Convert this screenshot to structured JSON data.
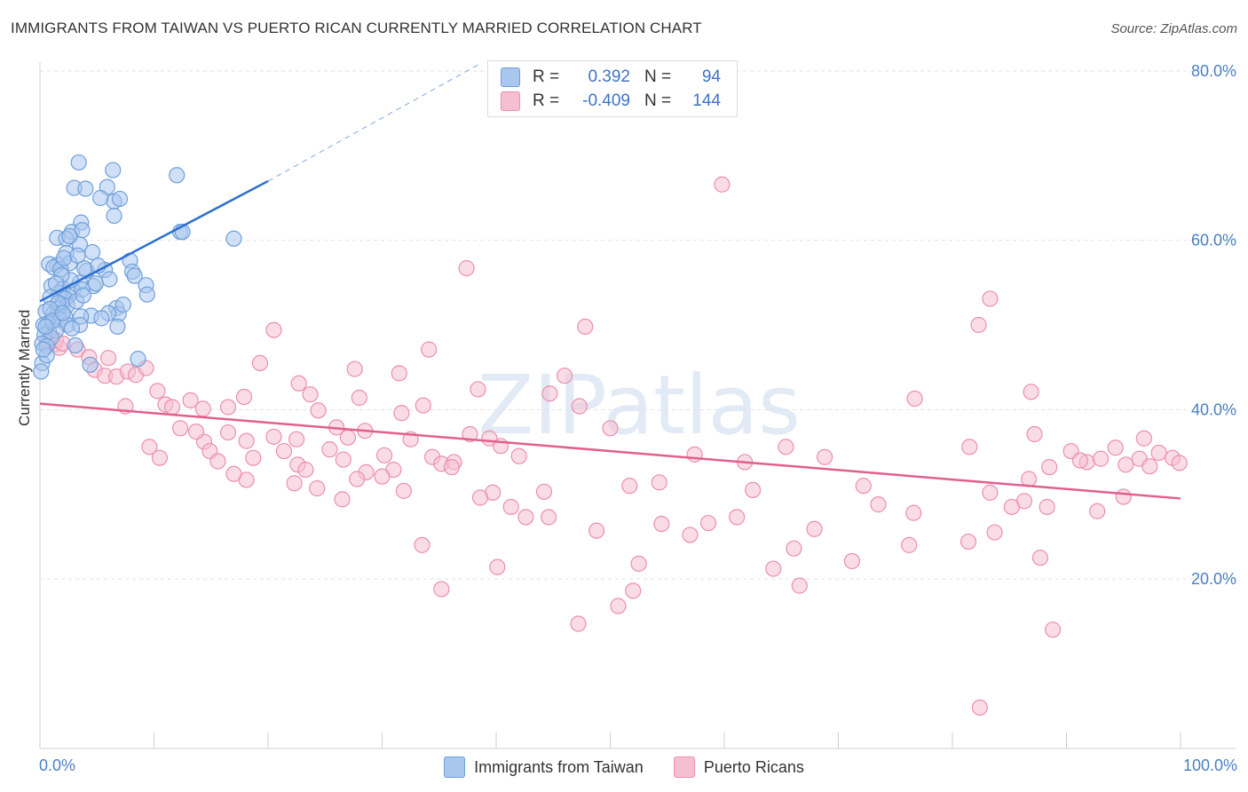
{
  "title": "IMMIGRANTS FROM TAIWAN VS PUERTO RICAN CURRENTLY MARRIED CORRELATION CHART",
  "source": "Source: ZipAtlas.com",
  "watermark": "ZIPatlas",
  "colors": {
    "blue_fill": "#a9c7ee",
    "blue_stroke": "#6f9fda",
    "blue_line": "#2a6fd0",
    "pink_fill": "#f6bfd1",
    "pink_stroke": "#ec8fae",
    "pink_line": "#e0608e",
    "axis_text": "#4a7fc4",
    "grid": "#e3e3e3"
  },
  "stats": {
    "rows": [
      {
        "r_label": "R =",
        "r_value": "0.392",
        "n_label": "N =",
        "n_value": "94",
        "color": "#a9c7ee"
      },
      {
        "r_label": "R =",
        "r_value": "-0.409",
        "n_label": "N =",
        "n_value": "144",
        "color": "#f6bfd1"
      }
    ]
  },
  "chart_data": {
    "type": "scatter",
    "title": "IMMIGRANTS FROM TAIWAN VS PUERTO RICAN CURRENTLY MARRIED CORRELATION CHART",
    "xlabel": "",
    "ylabel": "Currently Married",
    "xlim": [
      0,
      100
    ],
    "ylim": [
      0,
      85
    ],
    "x_tick_labels": [
      "0.0%",
      "100.0%"
    ],
    "y_ticks": [
      20,
      40,
      60,
      80
    ],
    "y_tick_labels": [
      "20.0%",
      "40.0%",
      "60.0%",
      "80.0%"
    ],
    "grid": true,
    "legend_position": "bottom",
    "series": [
      {
        "name": "Immigrants from Taiwan",
        "color": "#a9c7ee",
        "trend": {
          "x": [
            0,
            20
          ],
          "y": [
            52.8,
            67
          ],
          "dashed_to": {
            "x": 38.5,
            "y": 80.8
          }
        },
        "points": [
          [
            3.4,
            69.2
          ],
          [
            6.4,
            68.3
          ],
          [
            3.0,
            66.2
          ],
          [
            4.0,
            66.1
          ],
          [
            5.9,
            66.3
          ],
          [
            6.5,
            64.6
          ],
          [
            7.0,
            64.9
          ],
          [
            12.0,
            67.7
          ],
          [
            5.3,
            65.0
          ],
          [
            6.5,
            62.9
          ],
          [
            3.6,
            62.1
          ],
          [
            2.8,
            61.0
          ],
          [
            3.7,
            61.2
          ],
          [
            12.3,
            61.0
          ],
          [
            12.5,
            61.0
          ],
          [
            17.0,
            60.2
          ],
          [
            1.5,
            60.3
          ],
          [
            2.3,
            60.2
          ],
          [
            3.5,
            59.5
          ],
          [
            2.3,
            58.5
          ],
          [
            4.6,
            58.6
          ],
          [
            1.5,
            57.1
          ],
          [
            2.6,
            57.3
          ],
          [
            0.8,
            57.2
          ],
          [
            1.2,
            56.8
          ],
          [
            1.8,
            56.6
          ],
          [
            7.9,
            57.6
          ],
          [
            5.7,
            56.5
          ],
          [
            4.1,
            56.4
          ],
          [
            8.1,
            56.3
          ],
          [
            8.3,
            55.8
          ],
          [
            9.3,
            54.7
          ],
          [
            3.5,
            55.0
          ],
          [
            1.0,
            54.6
          ],
          [
            2.0,
            54.3
          ],
          [
            4.7,
            54.6
          ],
          [
            2.9,
            54.1
          ],
          [
            3.7,
            54.2
          ],
          [
            2.5,
            53.4
          ],
          [
            1.7,
            53.8
          ],
          [
            0.9,
            53.3
          ],
          [
            2.2,
            53.1
          ],
          [
            9.4,
            53.6
          ],
          [
            1.9,
            52.4
          ],
          [
            2.4,
            52.3
          ],
          [
            1.6,
            51.9
          ],
          [
            6.7,
            52.0
          ],
          [
            1.5,
            51.3
          ],
          [
            0.5,
            51.6
          ],
          [
            1.2,
            51.4
          ],
          [
            6.9,
            51.3
          ],
          [
            6.0,
            51.4
          ],
          [
            4.5,
            51.1
          ],
          [
            2.2,
            51.0
          ],
          [
            3.6,
            51.0
          ],
          [
            1.8,
            50.6
          ],
          [
            0.7,
            50.2
          ],
          [
            2.4,
            50.0
          ],
          [
            3.5,
            50.0
          ],
          [
            0.3,
            50.0
          ],
          [
            6.8,
            49.8
          ],
          [
            0.8,
            49.2
          ],
          [
            0.4,
            48.8
          ],
          [
            1.4,
            49.3
          ],
          [
            1.0,
            48.5
          ],
          [
            0.2,
            47.8
          ],
          [
            3.1,
            47.6
          ],
          [
            0.6,
            47.5
          ],
          [
            8.6,
            46.0
          ],
          [
            4.4,
            45.3
          ],
          [
            0.2,
            45.5
          ],
          [
            0.1,
            44.5
          ],
          [
            0.6,
            46.4
          ],
          [
            1.6,
            52.6
          ],
          [
            3.2,
            52.8
          ],
          [
            2.7,
            55.3
          ],
          [
            1.9,
            55.9
          ],
          [
            3.9,
            56.7
          ],
          [
            2.1,
            57.9
          ],
          [
            5.1,
            57.0
          ],
          [
            0.9,
            51.9
          ],
          [
            1.1,
            50.5
          ],
          [
            2.8,
            49.6
          ],
          [
            0.3,
            47.1
          ],
          [
            4.9,
            54.9
          ],
          [
            3.3,
            58.2
          ],
          [
            6.1,
            55.4
          ],
          [
            2.6,
            60.5
          ],
          [
            7.3,
            52.4
          ],
          [
            1.4,
            54.9
          ],
          [
            0.5,
            49.8
          ],
          [
            2.0,
            51.4
          ],
          [
            3.8,
            53.5
          ],
          [
            5.4,
            50.8
          ]
        ]
      },
      {
        "name": "Puerto Ricans",
        "color": "#f6bfd1",
        "trend": {
          "x": [
            0,
            100
          ],
          "y": [
            40.7,
            29.5
          ]
        },
        "points": [
          [
            59.8,
            66.6
          ],
          [
            37.4,
            56.7
          ],
          [
            83.3,
            53.1
          ],
          [
            47.8,
            49.8
          ],
          [
            82.3,
            50.0
          ],
          [
            20.5,
            49.4
          ],
          [
            34.1,
            47.1
          ],
          [
            0.6,
            47.9
          ],
          [
            1.3,
            47.7
          ],
          [
            1.7,
            47.3
          ],
          [
            1.4,
            48.2
          ],
          [
            2.0,
            47.8
          ],
          [
            3.3,
            47.1
          ],
          [
            4.3,
            46.2
          ],
          [
            4.8,
            44.7
          ],
          [
            5.7,
            44.0
          ],
          [
            6.0,
            46.1
          ],
          [
            6.7,
            43.9
          ],
          [
            7.7,
            44.5
          ],
          [
            8.4,
            44.1
          ],
          [
            9.3,
            44.9
          ],
          [
            19.3,
            45.5
          ],
          [
            27.6,
            44.8
          ],
          [
            31.5,
            44.3
          ],
          [
            46.0,
            44.0
          ],
          [
            10.3,
            42.2
          ],
          [
            22.7,
            43.1
          ],
          [
            38.4,
            42.4
          ],
          [
            86.9,
            42.1
          ],
          [
            11.0,
            40.6
          ],
          [
            11.6,
            40.3
          ],
          [
            13.2,
            41.1
          ],
          [
            14.3,
            40.1
          ],
          [
            16.5,
            40.3
          ],
          [
            17.9,
            41.5
          ],
          [
            23.7,
            41.8
          ],
          [
            28.0,
            41.4
          ],
          [
            33.6,
            40.5
          ],
          [
            44.7,
            41.9
          ],
          [
            47.3,
            40.4
          ],
          [
            76.7,
            41.3
          ],
          [
            7.5,
            40.4
          ],
          [
            24.4,
            39.9
          ],
          [
            31.7,
            39.6
          ],
          [
            37.7,
            37.1
          ],
          [
            28.5,
            37.5
          ],
          [
            26.0,
            37.9
          ],
          [
            22.5,
            36.5
          ],
          [
            20.5,
            36.8
          ],
          [
            14.4,
            36.2
          ],
          [
            13.7,
            37.4
          ],
          [
            12.3,
            37.8
          ],
          [
            9.6,
            35.6
          ],
          [
            14.9,
            35.1
          ],
          [
            15.6,
            33.9
          ],
          [
            16.5,
            37.3
          ],
          [
            18.1,
            36.3
          ],
          [
            18.7,
            34.3
          ],
          [
            21.4,
            35.1
          ],
          [
            22.6,
            33.5
          ],
          [
            23.3,
            32.9
          ],
          [
            25.4,
            35.3
          ],
          [
            26.6,
            34.1
          ],
          [
            27.0,
            36.7
          ],
          [
            28.6,
            32.6
          ],
          [
            30.2,
            34.6
          ],
          [
            31.0,
            32.9
          ],
          [
            32.5,
            36.5
          ],
          [
            34.4,
            34.4
          ],
          [
            35.2,
            33.6
          ],
          [
            36.3,
            33.8
          ],
          [
            39.4,
            36.6
          ],
          [
            40.4,
            35.7
          ],
          [
            42.0,
            34.5
          ],
          [
            44.2,
            30.3
          ],
          [
            50.0,
            37.8
          ],
          [
            57.4,
            34.7
          ],
          [
            61.8,
            33.8
          ],
          [
            68.8,
            34.4
          ],
          [
            81.5,
            35.6
          ],
          [
            87.2,
            37.1
          ],
          [
            90.4,
            35.1
          ],
          [
            91.8,
            33.8
          ],
          [
            93.0,
            34.2
          ],
          [
            94.3,
            35.5
          ],
          [
            95.2,
            33.5
          ],
          [
            96.8,
            36.6
          ],
          [
            98.1,
            34.9
          ],
          [
            99.3,
            34.3
          ],
          [
            99.9,
            33.7
          ],
          [
            88.5,
            33.2
          ],
          [
            91.2,
            34.0
          ],
          [
            86.7,
            31.8
          ],
          [
            86.3,
            29.2
          ],
          [
            92.7,
            28.0
          ],
          [
            96.4,
            34.2
          ],
          [
            76.6,
            27.8
          ],
          [
            72.2,
            31.0
          ],
          [
            73.5,
            28.8
          ],
          [
            65.4,
            35.6
          ],
          [
            62.5,
            30.5
          ],
          [
            61.1,
            27.3
          ],
          [
            57.0,
            25.2
          ],
          [
            54.3,
            31.4
          ],
          [
            51.7,
            31.0
          ],
          [
            41.3,
            28.5
          ],
          [
            39.7,
            30.2
          ],
          [
            38.6,
            29.6
          ],
          [
            36.1,
            33.2
          ],
          [
            31.9,
            30.4
          ],
          [
            30.0,
            32.1
          ],
          [
            27.8,
            31.8
          ],
          [
            26.5,
            29.4
          ],
          [
            24.3,
            30.7
          ],
          [
            22.3,
            31.3
          ],
          [
            18.1,
            31.7
          ],
          [
            17.0,
            32.4
          ],
          [
            10.5,
            34.3
          ],
          [
            44.6,
            27.3
          ],
          [
            42.6,
            27.3
          ],
          [
            48.8,
            25.7
          ],
          [
            54.5,
            26.5
          ],
          [
            58.6,
            26.6
          ],
          [
            67.9,
            25.9
          ],
          [
            85.2,
            28.5
          ],
          [
            83.3,
            30.2
          ],
          [
            88.3,
            28.5
          ],
          [
            87.7,
            22.5
          ],
          [
            83.7,
            25.5
          ],
          [
            81.4,
            24.4
          ],
          [
            76.2,
            24.0
          ],
          [
            71.2,
            22.1
          ],
          [
            66.1,
            23.6
          ],
          [
            64.3,
            21.2
          ],
          [
            52.5,
            21.8
          ],
          [
            52.0,
            18.6
          ],
          [
            50.7,
            16.8
          ],
          [
            47.2,
            14.7
          ],
          [
            35.2,
            18.8
          ],
          [
            33.5,
            24.0
          ],
          [
            66.6,
            19.2
          ],
          [
            88.8,
            14.0
          ],
          [
            82.4,
            4.8
          ],
          [
            40.1,
            21.4
          ],
          [
            95.0,
            29.7
          ],
          [
            97.3,
            33.3
          ]
        ]
      }
    ]
  }
}
